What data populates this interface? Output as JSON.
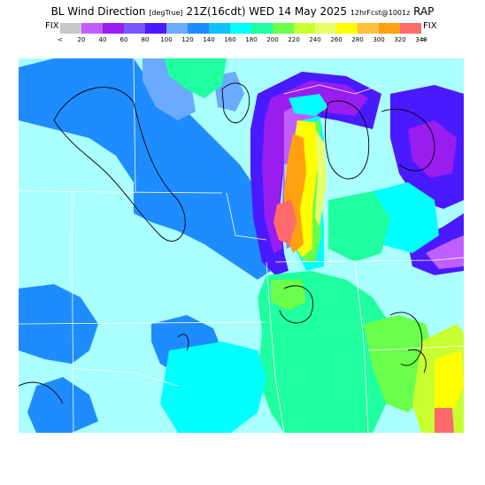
{
  "title": {
    "main": "BL Wind Direction",
    "units": "[degTrue]",
    "valid": "21Z(16cdt) WED 14 May 2025",
    "forecast": "12hrFcst@1001z",
    "model": "RAP"
  },
  "legend": {
    "fix_left": "FIX",
    "fix_right": "FIX",
    "less_than": "<",
    "greater_than": ">",
    "labels": [
      "20",
      "40",
      "60",
      "80",
      "100",
      "120",
      "140",
      "160",
      "180",
      "200",
      "220",
      "240",
      "260",
      "280",
      "300",
      "320",
      "340"
    ],
    "colors": [
      "#c8c8c8",
      "#bf5fff",
      "#9a1df0",
      "#7a55ff",
      "#4a1aff",
      "#6aaaff",
      "#1e8cff",
      "#10c0ff",
      "#00ffff",
      "#20ff9f",
      "#6aff4a",
      "#c8ff30",
      "#e9ff6a",
      "#ffff00",
      "#ffc040",
      "#ffa010",
      "#ff6a6a"
    ]
  },
  "palette": {
    "deep_purple": "#4a1aff",
    "purple": "#9a1df0",
    "mid_blue": "#1e8cff",
    "light_blue": "#6aaaff",
    "cyan": "#00ffff",
    "pale_cyan": "#aaffff",
    "green": "#20ff9f",
    "lime": "#6aff4a",
    "yellow_green": "#c8ff30",
    "yellow": "#ffff00",
    "orange": "#ffa010",
    "red": "#ff6a6a",
    "lavender": "#bf5fff",
    "gray": "#c8c8c8",
    "boundary_color": "#ffffff",
    "contour_color": "#000000"
  }
}
